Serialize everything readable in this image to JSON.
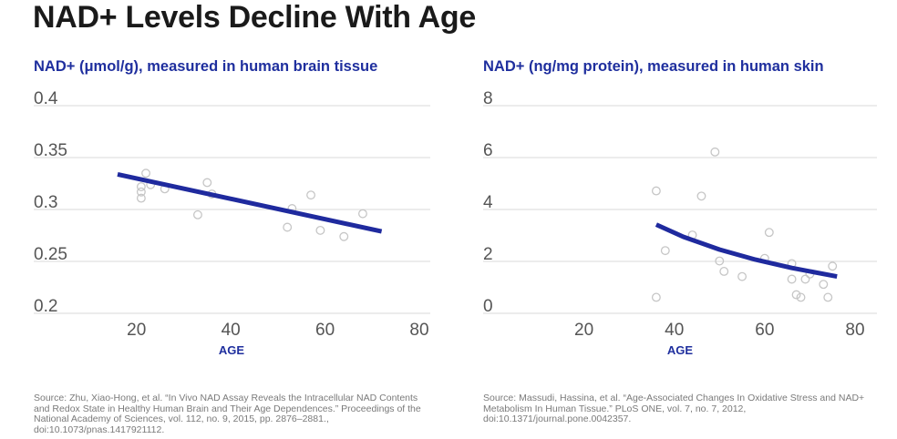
{
  "title": "NAD+ Levels Decline With Age",
  "panels": {
    "left": {
      "heading": "NAD+ (μmol/g), measured in human brain tissue",
      "source": "Source: Zhu, Xiao-Hong, et al. “In Vivo NAD Assay Reveals the Intracellular NAD Contents and Redox State in Healthy Human Brain and Their Age Dependences.” Proceedings of the National Academy of Sciences, vol. 112, no. 9, 2015, pp. 2876–2881., doi:10.1073/pnas.1417921112."
    },
    "right": {
      "heading": "NAD+ (ng/mg protein), measured in human skin",
      "source": "Source: Massudi, Hassina, et al. “Age-Associated Changes In Oxidative Stress and NAD+ Metabolism In Human Tissue.” PLoS ONE, vol. 7, no. 7, 2012, doi:10.1371/journal.pone.0042357."
    }
  },
  "colors": {
    "trend": "#1f2a9e",
    "title": "#1f2f9e",
    "grid": "#d9d9d9",
    "point_stroke": "#c6c6c6",
    "tick_label": "#555555"
  },
  "chart_data": [
    {
      "type": "scatter",
      "xlabel": "AGE",
      "ylabel": "NAD+ (μmol/g), measured in human brain tissue",
      "xlim": [
        10,
        80
      ],
      "ylim": [
        0.2,
        0.4
      ],
      "x_ticks": [
        20,
        40,
        60,
        80
      ],
      "x_tick_labels": [
        "20",
        "40",
        "60",
        "80"
      ],
      "y_ticks": [
        0.2,
        0.25,
        0.3,
        0.35,
        0.4
      ],
      "y_tick_labels": [
        "0.2",
        "0.25",
        "0.3",
        "0.35",
        "0.4"
      ],
      "grid": "horizontal",
      "points": [
        [
          21,
          0.303
        ],
        [
          21,
          0.309
        ],
        [
          21,
          0.314
        ],
        [
          22,
          0.327
        ],
        [
          23,
          0.316
        ],
        [
          26,
          0.312
        ],
        [
          33,
          0.287
        ],
        [
          35,
          0.318
        ],
        [
          36,
          0.307
        ],
        [
          52,
          0.275
        ],
        [
          53,
          0.293
        ],
        [
          57,
          0.306
        ],
        [
          59,
          0.272
        ],
        [
          64,
          0.266
        ],
        [
          68,
          0.288
        ]
      ],
      "trend": [
        [
          16,
          0.326
        ],
        [
          72,
          0.271
        ]
      ]
    },
    {
      "type": "scatter",
      "xlabel": "AGE",
      "ylabel": "NAD+ (ng/mg protein), measured in human skin",
      "xlim": [
        10,
        80
      ],
      "ylim": [
        0,
        8
      ],
      "x_ticks": [
        20,
        40,
        60,
        80
      ],
      "x_tick_labels": [
        "20",
        "40",
        "60",
        "80"
      ],
      "y_ticks": [
        0,
        2,
        4,
        6,
        8
      ],
      "y_tick_labels": [
        "0",
        "2",
        "4",
        "6",
        "8"
      ],
      "grid": "horizontal",
      "points": [
        [
          36,
          0.3
        ],
        [
          36,
          4.4
        ],
        [
          38,
          2.1
        ],
        [
          44,
          2.7
        ],
        [
          46,
          4.2
        ],
        [
          49,
          5.9
        ],
        [
          50,
          1.7
        ],
        [
          51,
          1.3
        ],
        [
          55,
          1.1
        ],
        [
          60,
          1.8
        ],
        [
          61,
          2.8
        ],
        [
          66,
          1.6
        ],
        [
          66,
          1.0
        ],
        [
          67,
          0.4
        ],
        [
          68,
          0.3
        ],
        [
          69,
          1.0
        ],
        [
          70,
          1.2
        ],
        [
          73,
          0.8
        ],
        [
          74,
          0.3
        ],
        [
          75,
          1.5
        ]
      ],
      "trend": [
        [
          36,
          3.1
        ],
        [
          42,
          2.63
        ],
        [
          50,
          2.14
        ],
        [
          58,
          1.75
        ],
        [
          66,
          1.43
        ],
        [
          76,
          1.1
        ]
      ]
    }
  ]
}
